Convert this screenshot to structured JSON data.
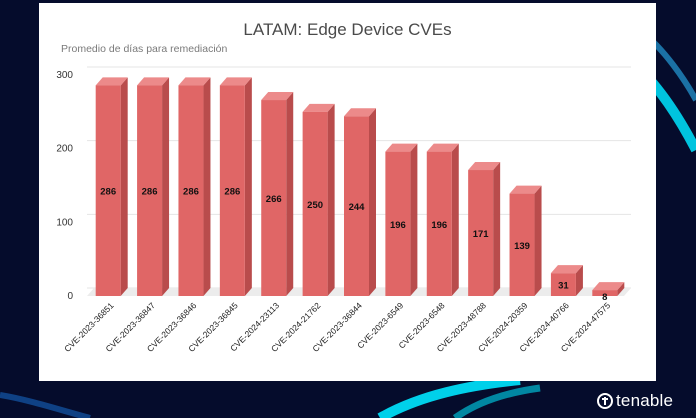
{
  "brand": {
    "name": "tenable"
  },
  "colors": {
    "background": "#050c2c",
    "accent": "#00e5ff",
    "bar_front": "#e06666",
    "bar_side": "#b94c4c",
    "bar_top": "#ec8a8a"
  },
  "chart_data": {
    "type": "bar",
    "title": "LATAM: Edge Device CVEs",
    "subtitle": "Promedio de días para remediación",
    "xlabel": "",
    "ylabel": "",
    "ylim": [
      0,
      300
    ],
    "yticks": [
      0,
      100,
      200,
      300
    ],
    "grid": true,
    "legend": "none",
    "categories": [
      "CVE-2023-36851",
      "CVE-2023-36847",
      "CVE-2023-36846",
      "CVE-2023-36845",
      "CVE-2024-23113",
      "CVE-2024-21762",
      "CVE-2023-36844",
      "CVE-2023-6549",
      "CVE-2023-6548",
      "CVE-2023-48788",
      "CVE-2024-20359",
      "CVE-2024-40766",
      "CVE-2024-47575"
    ],
    "values": [
      286,
      286,
      286,
      286,
      266,
      250,
      244,
      196,
      196,
      171,
      139,
      31,
      8
    ],
    "data_labels": [
      "286",
      "286",
      "286",
      "286",
      "266",
      "250",
      "244",
      "196",
      "196",
      "171",
      "139",
      "31",
      "8"
    ]
  }
}
